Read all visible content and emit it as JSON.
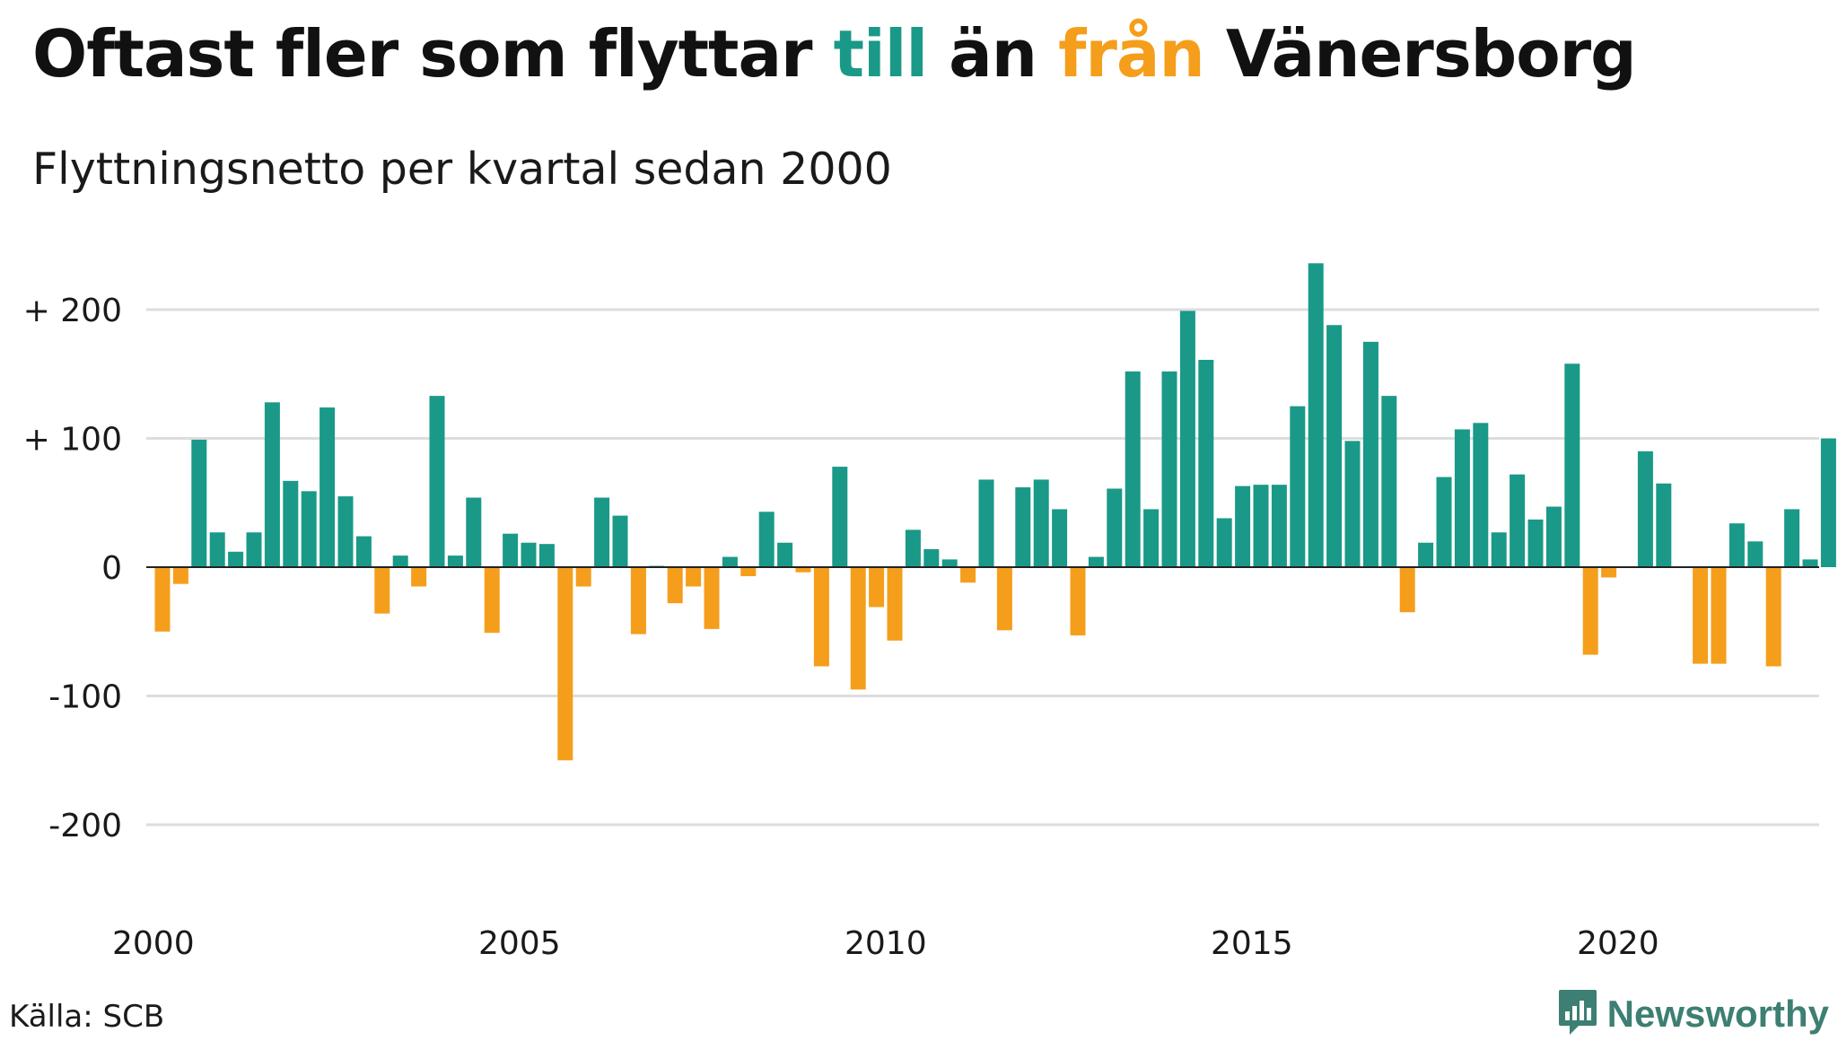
{
  "header": {
    "title_part1": "Oftast fler som flyttar ",
    "title_till": "till",
    "title_part2": " än ",
    "title_fran": "från",
    "title_part3": " Vänersborg",
    "subtitle": "Flyttningsnetto per kvartal sedan 2000"
  },
  "footer": {
    "source": "Källa: SCB",
    "brand": "Newsworthy",
    "brand_icon": "newsworthy-logo-icon"
  },
  "colors": {
    "positive": "#1a9988",
    "negative": "#f59e1b",
    "grid": "#dddddd",
    "baseline": "#222222",
    "title_text": "#111111",
    "brand": "#3d7f73"
  },
  "chart_data": {
    "type": "bar",
    "title": "Oftast fler som flyttar till än från Vänersborg",
    "subtitle": "Flyttningsnetto per kvartal sedan 2000",
    "xlabel": "",
    "ylabel": "",
    "ylim": [
      -250,
      240
    ],
    "grid": true,
    "start_year": 2000,
    "periods_per_year": 4,
    "x_ticks": [
      "2000",
      "2005",
      "2010",
      "2015",
      "2020"
    ],
    "y_ticks": [
      {
        "value": 200,
        "label": "+ 200"
      },
      {
        "value": 100,
        "label": "+ 100"
      },
      {
        "value": 0,
        "label": "0"
      },
      {
        "value": -100,
        "label": "-100"
      },
      {
        "value": -200,
        "label": "-200"
      }
    ],
    "values": [
      -50,
      -13,
      99,
      27,
      12,
      27,
      128,
      67,
      59,
      124,
      55,
      24,
      -36,
      9,
      -15,
      133,
      9,
      54,
      -51,
      26,
      19,
      18,
      -150,
      -15,
      54,
      40,
      -52,
      1,
      -28,
      -15,
      -48,
      8,
      -7,
      43,
      19,
      -4,
      -77,
      78,
      -95,
      -31,
      -57,
      29,
      14,
      6,
      -12,
      68,
      -49,
      62,
      68,
      45,
      -53,
      8,
      61,
      152,
      45,
      152,
      199,
      161,
      38,
      63,
      64,
      64,
      125,
      236,
      188,
      98,
      175,
      133,
      -35,
      19,
      70,
      107,
      112,
      27,
      72,
      37,
      47,
      158,
      -68,
      -8,
      0,
      90,
      65,
      0,
      -75,
      -75,
      34,
      20,
      -77,
      45,
      6,
      100
    ]
  }
}
